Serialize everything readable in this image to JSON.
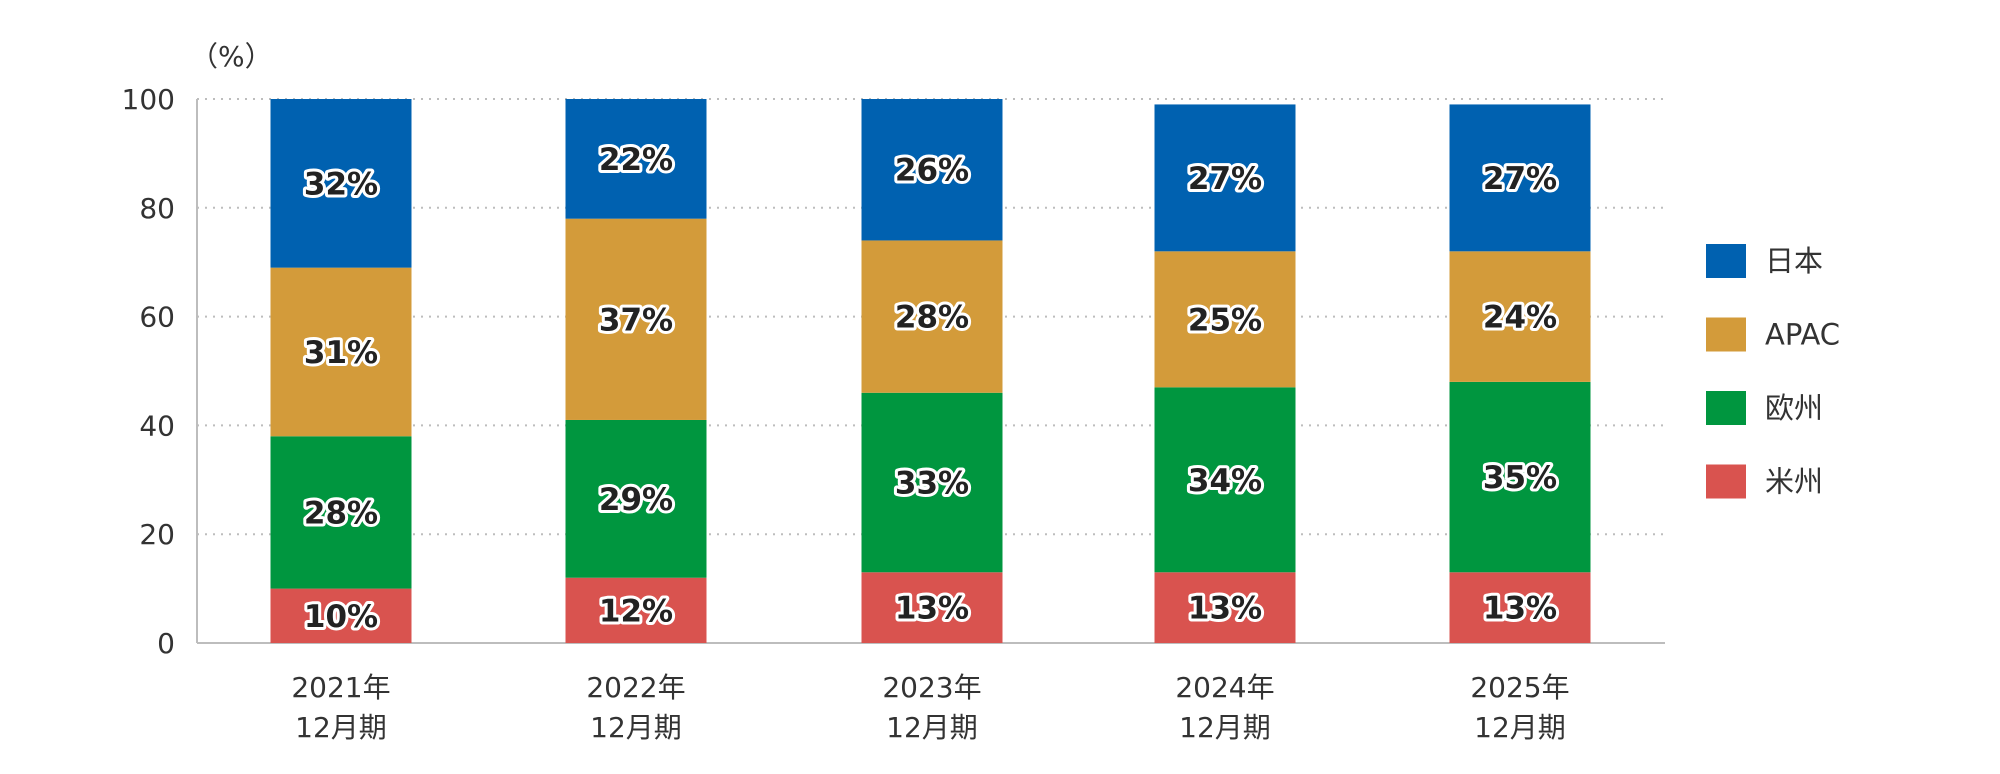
{
  "chart_data": {
    "type": "bar",
    "stacked": true,
    "unit_label": "（%）",
    "categories": [
      [
        "2021年",
        "12月期"
      ],
      [
        "2022年",
        "12月期"
      ],
      [
        "2023年",
        "12月期"
      ],
      [
        "2024年",
        "12月期"
      ],
      [
        "2025年",
        "12月期"
      ]
    ],
    "series": [
      {
        "name": "米州",
        "color": "#d9534f",
        "values": [
          10,
          12,
          13,
          13,
          13
        ],
        "labels": [
          "10%",
          "12%",
          "13%",
          "13%",
          "13%"
        ]
      },
      {
        "name": "欧州",
        "color": "#00963f",
        "values": [
          28,
          29,
          33,
          34,
          35
        ],
        "labels": [
          "28%",
          "29%",
          "33%",
          "34%",
          "35%"
        ]
      },
      {
        "name": "APAC",
        "color": "#d39b3a",
        "values": [
          31,
          37,
          28,
          25,
          24
        ],
        "labels": [
          "31%",
          "37%",
          "28%",
          "25%",
          "24%"
        ]
      },
      {
        "name": "日本",
        "color": "#0061b0",
        "values": [
          32,
          22,
          26,
          27,
          27
        ],
        "labels": [
          "32%",
          "22%",
          "26%",
          "27%",
          "27%"
        ]
      }
    ],
    "legend_order": [
      "日本",
      "APAC",
      "欧州",
      "米州"
    ],
    "ylim": [
      0,
      100
    ],
    "yticks": [
      0,
      20,
      40,
      60,
      80,
      100
    ],
    "grid": "dotted-horizontal",
    "legend_position": "right"
  }
}
